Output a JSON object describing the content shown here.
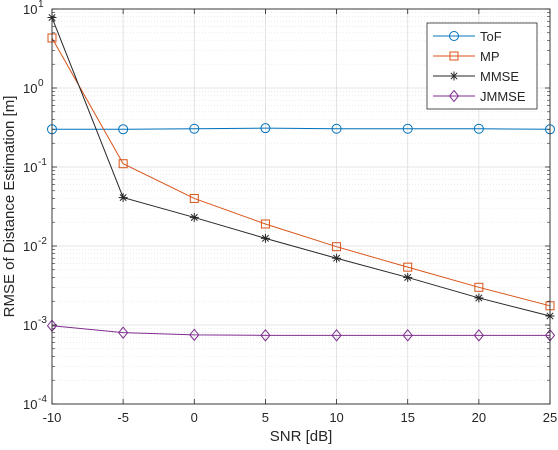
{
  "chart_data": {
    "type": "line",
    "title": "",
    "xlabel": "SNR [dB]",
    "ylabel": "RMSE of Distance Estimation [m]",
    "x": [
      -10,
      -5,
      0,
      5,
      10,
      15,
      20,
      25
    ],
    "xlim": [
      -10,
      25
    ],
    "ylim": [
      0.0001,
      10
    ],
    "yscale": "log",
    "grid": true,
    "minor_grid": true,
    "legend_position": "top-right",
    "x_ticks": [
      "-10",
      "-5",
      "0",
      "5",
      "10",
      "15",
      "20",
      "25"
    ],
    "y_ticks": [
      {
        "base": "10",
        "exp": "-4",
        "value": 0.0001
      },
      {
        "base": "10",
        "exp": "-3",
        "value": 0.001
      },
      {
        "base": "10",
        "exp": "-2",
        "value": 0.01
      },
      {
        "base": "10",
        "exp": "-1",
        "value": 0.1
      },
      {
        "base": "10",
        "exp": "0",
        "value": 1
      },
      {
        "base": "10",
        "exp": "1",
        "value": 10
      }
    ],
    "series": [
      {
        "name": "ToF",
        "color": "#0072BD",
        "marker": "circle",
        "values": [
          0.3,
          0.3,
          0.305,
          0.31,
          0.305,
          0.305,
          0.305,
          0.3
        ]
      },
      {
        "name": "MP",
        "color": "#D95319",
        "marker": "square",
        "values": [
          4.3,
          0.11,
          0.04,
          0.019,
          0.0098,
          0.0054,
          0.003,
          0.00175
        ]
      },
      {
        "name": "MMSE",
        "color": "#262626",
        "marker": "asterisk",
        "values": [
          7.8,
          0.041,
          0.023,
          0.0125,
          0.007,
          0.004,
          0.0022,
          0.0013
        ]
      },
      {
        "name": "JMMSE",
        "color": "#7E2F8E",
        "marker": "diamond",
        "values": [
          0.00098,
          0.0008,
          0.00075,
          0.00074,
          0.00074,
          0.00074,
          0.00074,
          0.00074
        ]
      }
    ]
  }
}
